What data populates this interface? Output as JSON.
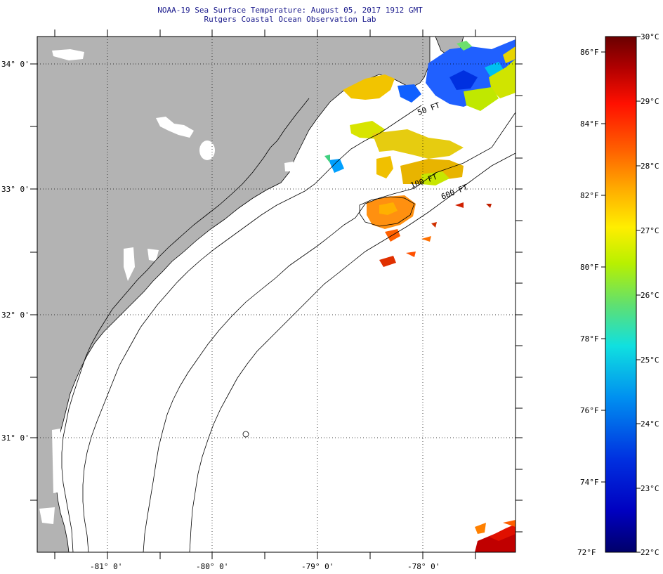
{
  "title": {
    "line1": "NOAA-19 Sea Surface Temperature:  August 05, 2017 1912 GMT",
    "line2": "Rutgers Coastal Ocean Observation Lab"
  },
  "map": {
    "lat_labels": [
      "34° 0'",
      "33° 0'",
      "32° 0'",
      "31° 0'"
    ],
    "lon_labels": [
      "-81° 0'",
      "-80° 0'",
      "-79° 0'",
      "-78° 0'"
    ],
    "isobath_labels": [
      "50 FT",
      "100 FT",
      "600 FT"
    ],
    "land_color": "#b3b3b3",
    "no_data_color": "#ffffff"
  },
  "colorbar": {
    "fahrenheit_labels": [
      "86°F",
      "84°F",
      "82°F",
      "80°F",
      "78°F",
      "76°F",
      "74°F",
      "72°F"
    ],
    "celsius_labels": [
      "30°C",
      "29°C",
      "28°C",
      "27°C",
      "26°C",
      "25°C",
      "24°C",
      "23°C",
      "22°C"
    ],
    "colors": [
      "#7a0000",
      "#c00000",
      "#ff1a00",
      "#ff6a00",
      "#ffb000",
      "#ffe600",
      "#c8f000",
      "#6ee06e",
      "#20e0c0",
      "#00d8f0",
      "#0090f0",
      "#0040e0",
      "#0000c8",
      "#00008a"
    ]
  }
}
